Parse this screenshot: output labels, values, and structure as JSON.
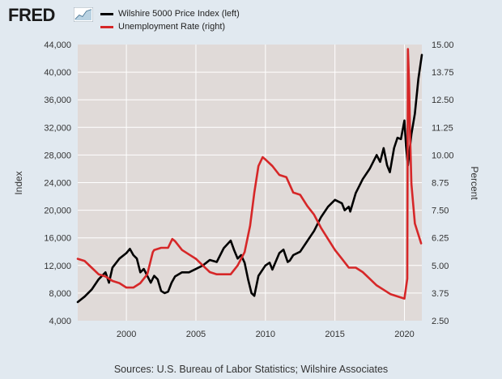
{
  "header": {
    "logo_text": "FRED"
  },
  "legend": [
    {
      "label": "Wilshire 5000 Price Index (left)",
      "color": "#000000"
    },
    {
      "label": "Unemployment Rate (right)",
      "color": "#d62728"
    }
  ],
  "source": "Sources: U.S. Bureau of Labor Statistics; Wilshire Associates",
  "chart_data": {
    "type": "line",
    "title": "",
    "xlabel": "",
    "ylabel_left": "Index",
    "ylabel_right": "Percent",
    "xlim": [
      1996.5,
      2021.25
    ],
    "ylim_left": [
      4000,
      44000
    ],
    "ylim_right": [
      2.5,
      15.0
    ],
    "x_ticks": [
      2000,
      2005,
      2010,
      2015,
      2020
    ],
    "y_ticks_left": [
      "4,000",
      "8,000",
      "12,000",
      "16,000",
      "20,000",
      "24,000",
      "28,000",
      "32,000",
      "36,000",
      "40,000",
      "44,000"
    ],
    "y_ticks_right": [
      "2.50",
      "3.75",
      "5.00",
      "6.25",
      "7.50",
      "8.75",
      "10.00",
      "11.25",
      "12.50",
      "13.75",
      "15.00"
    ],
    "grid": true,
    "series": [
      {
        "name": "Wilshire 5000 Price Index (left)",
        "axis": "left",
        "color": "#000000",
        "x": [
          1996.5,
          1997.0,
          1997.5,
          1998.0,
          1998.5,
          1998.75,
          1999.0,
          1999.5,
          2000.0,
          2000.25,
          2000.5,
          2000.75,
          2001.0,
          2001.25,
          2001.5,
          2001.75,
          2002.0,
          2002.25,
          2002.5,
          2002.75,
          2003.0,
          2003.25,
          2003.5,
          2004.0,
          2004.5,
          2005.0,
          2005.5,
          2006.0,
          2006.5,
          2007.0,
          2007.5,
          2007.75,
          2008.0,
          2008.25,
          2008.5,
          2008.75,
          2009.0,
          2009.2,
          2009.5,
          2010.0,
          2010.3,
          2010.5,
          2011.0,
          2011.3,
          2011.6,
          2011.75,
          2012.0,
          2012.5,
          2013.0,
          2013.5,
          2014.0,
          2014.5,
          2015.0,
          2015.5,
          2015.7,
          2016.0,
          2016.1,
          2016.5,
          2017.0,
          2017.5,
          2018.0,
          2018.25,
          2018.5,
          2018.75,
          2018.95,
          2019.25,
          2019.5,
          2019.75,
          2020.0,
          2020.1,
          2020.25,
          2020.5,
          2020.75,
          2021.0,
          2021.25
        ],
        "y": [
          6700,
          7500,
          8500,
          10000,
          11000,
          9500,
          11700,
          13000,
          13800,
          14400,
          13500,
          13000,
          11000,
          11500,
          10500,
          9500,
          10500,
          10000,
          8300,
          8000,
          8200,
          9500,
          10400,
          11000,
          11000,
          11500,
          12000,
          12800,
          12500,
          14500,
          15600,
          14200,
          13000,
          13500,
          12400,
          10000,
          8000,
          7600,
          10500,
          12000,
          12400,
          11400,
          13800,
          14300,
          12500,
          12700,
          13500,
          14000,
          15500,
          17000,
          19000,
          20500,
          21500,
          21000,
          20000,
          20500,
          19800,
          22500,
          24500,
          26000,
          28000,
          27000,
          29000,
          26500,
          25500,
          29000,
          30500,
          30300,
          33000,
          29500,
          26500,
          31000,
          34000,
          39000,
          42500
        ]
      },
      {
        "name": "Unemployment Rate (right)",
        "axis": "right",
        "color": "#d62728",
        "x": [
          1996.5,
          1997.0,
          1997.5,
          1998.0,
          1998.5,
          1999.0,
          1999.5,
          2000.0,
          2000.5,
          2001.0,
          2001.5,
          2001.9,
          2002.0,
          2002.5,
          2003.0,
          2003.3,
          2003.5,
          2004.0,
          2004.5,
          2005.0,
          2005.5,
          2006.0,
          2006.5,
          2007.0,
          2007.5,
          2008.0,
          2008.5,
          2008.9,
          2009.2,
          2009.5,
          2009.8,
          2010.0,
          2010.5,
          2011.0,
          2011.5,
          2012.0,
          2012.5,
          2013.0,
          2013.5,
          2014.0,
          2014.5,
          2015.0,
          2015.5,
          2016.0,
          2016.5,
          2017.0,
          2017.5,
          2018.0,
          2018.5,
          2019.0,
          2019.5,
          2020.0,
          2020.2,
          2020.25,
          2020.33,
          2020.4,
          2020.5,
          2020.75,
          2021.0,
          2021.2
        ],
        "y": [
          5.3,
          5.2,
          4.9,
          4.6,
          4.5,
          4.3,
          4.2,
          4.0,
          4.0,
          4.2,
          4.6,
          5.6,
          5.7,
          5.8,
          5.8,
          6.2,
          6.1,
          5.7,
          5.5,
          5.3,
          5.0,
          4.7,
          4.6,
          4.6,
          4.6,
          5.0,
          5.6,
          6.8,
          8.3,
          9.5,
          9.9,
          9.8,
          9.5,
          9.1,
          9.0,
          8.3,
          8.2,
          7.7,
          7.3,
          6.7,
          6.2,
          5.7,
          5.3,
          4.9,
          4.9,
          4.7,
          4.4,
          4.1,
          3.9,
          3.7,
          3.6,
          3.5,
          4.4,
          14.8,
          13.3,
          11.0,
          8.7,
          6.9,
          6.4,
          6.0
        ]
      }
    ]
  }
}
